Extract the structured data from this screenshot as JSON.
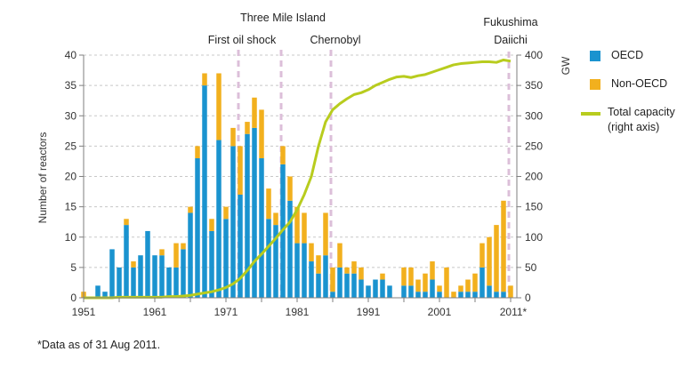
{
  "chart_data": {
    "type": "bar",
    "subtype": "stacked-bar-with-line",
    "title": "",
    "xlabel": "",
    "ylabel": "Number of reactors",
    "y2label": "GW",
    "ylim": [
      0,
      40
    ],
    "y2lim": [
      0,
      400
    ],
    "yticks": [
      0,
      5,
      10,
      15,
      20,
      25,
      30,
      35,
      40
    ],
    "y2ticks": [
      0,
      50,
      100,
      150,
      200,
      250,
      300,
      350,
      400
    ],
    "xtick_labels": [
      "1951",
      "1961",
      "1971",
      "1981",
      "1991",
      "2001",
      "2011*"
    ],
    "grid": true,
    "legend_position": "right",
    "x": [
      1951,
      1952,
      1953,
      1954,
      1955,
      1956,
      1957,
      1958,
      1959,
      1960,
      1961,
      1962,
      1963,
      1964,
      1965,
      1966,
      1967,
      1968,
      1969,
      1970,
      1971,
      1972,
      1973,
      1974,
      1975,
      1976,
      1977,
      1978,
      1979,
      1980,
      1981,
      1982,
      1983,
      1984,
      1985,
      1986,
      1987,
      1988,
      1989,
      1990,
      1991,
      1992,
      1993,
      1994,
      1995,
      1996,
      1997,
      1998,
      1999,
      2000,
      2001,
      2002,
      2003,
      2004,
      2005,
      2006,
      2007,
      2008,
      2009,
      2010,
      2011
    ],
    "series": [
      {
        "name": "OECD",
        "color": "#1a93cf",
        "axis": "left",
        "values": [
          0,
          0,
          2,
          1,
          8,
          5,
          12,
          5,
          7,
          11,
          7,
          7,
          5,
          5,
          8,
          14,
          23,
          35,
          11,
          26,
          13,
          25,
          17,
          27,
          28,
          23,
          13,
          12,
          22,
          16,
          9,
          9,
          6,
          4,
          7,
          1,
          5,
          4,
          4,
          3,
          2,
          3,
          3,
          2,
          0,
          2,
          2,
          1,
          1,
          3,
          1,
          0,
          0,
          1,
          1,
          1,
          5,
          2,
          1,
          1,
          0
        ]
      },
      {
        "name": "Non-OECD",
        "color": "#f2b01e",
        "axis": "left",
        "values": [
          1,
          0,
          0,
          0,
          0,
          0,
          1,
          1,
          0,
          0,
          0,
          1,
          0,
          4,
          1,
          1,
          2,
          2,
          2,
          11,
          2,
          3,
          8,
          2,
          5,
          8,
          5,
          2,
          3,
          4,
          6,
          5,
          3,
          3,
          7,
          4,
          4,
          1,
          2,
          2,
          0,
          0,
          1,
          0,
          0,
          3,
          3,
          2,
          3,
          3,
          1,
          5,
          1,
          1,
          2,
          3,
          4,
          8,
          11,
          15,
          2
        ]
      },
      {
        "name": "Total capacity (right axis)",
        "color": "#b8cc1e",
        "axis": "right",
        "type": "line",
        "values": [
          0,
          0,
          0,
          0,
          0,
          1,
          1,
          1,
          1,
          1,
          1,
          1,
          2,
          2,
          3,
          4,
          6,
          8,
          10,
          13,
          17,
          23,
          32,
          45,
          60,
          72,
          85,
          98,
          112,
          125,
          145,
          170,
          200,
          250,
          290,
          310,
          320,
          328,
          335,
          338,
          343,
          350,
          355,
          360,
          364,
          365,
          363,
          366,
          368,
          372,
          376,
          380,
          384,
          386,
          387,
          388,
          389,
          389,
          388,
          392,
          390
        ]
      }
    ],
    "events": [
      {
        "label": "First oil shock",
        "year": 1973
      },
      {
        "label": "Three Mile Island",
        "year": 1979
      },
      {
        "label": "Chernobyl",
        "year": 1986
      },
      {
        "label": "Fukushima Daiichi",
        "label_lines": [
          "Fukushima",
          "Daiichi"
        ],
        "year": 2011
      }
    ],
    "colors": {
      "oecd": "#1a93cf",
      "non_oecd": "#f2b01e",
      "capacity": "#b8cc1e",
      "event_line": "#dcbfd9",
      "grid": "#c8c8c8",
      "axis": "#7f7f7f"
    }
  },
  "legend": {
    "items": [
      {
        "label": "OECD",
        "color": "#1a93cf"
      },
      {
        "label": "Non-OECD",
        "color": "#f2b01e"
      },
      {
        "label_lines": [
          "Total capacity",
          "(right axis)"
        ],
        "color": "#b8cc1e"
      }
    ]
  },
  "footnote": "*Data as of 31 Aug 2011."
}
